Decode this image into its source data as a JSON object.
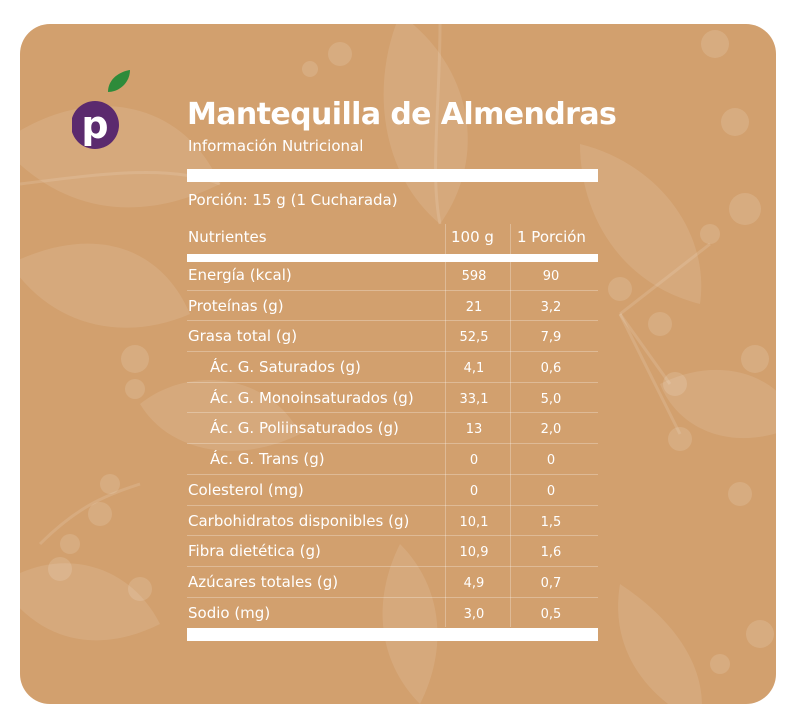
{
  "brand": {
    "logo_letter": "p",
    "logo_color": "#5b2a6e",
    "leaf_color": "#2e8b3a"
  },
  "colors": {
    "card_background": "#d2a06e",
    "text": "#ffffff"
  },
  "title": "Mantequilla de Almendras",
  "subtitle": "Información Nutricional",
  "portion": "Porción: 15 g (1 Cucharada)",
  "table": {
    "headers": [
      "Nutrientes",
      "100 g",
      "1 Porción"
    ],
    "rows": [
      {
        "name": "Energía (kcal)",
        "per100": "598",
        "perPortion": "90",
        "indent": false
      },
      {
        "name": "Proteínas (g)",
        "per100": "21",
        "perPortion": "3,2",
        "indent": false
      },
      {
        "name": "Grasa total (g)",
        "per100": "52,5",
        "perPortion": "7,9",
        "indent": false
      },
      {
        "name": "Ác. G. Saturados (g)",
        "per100": "4,1",
        "perPortion": "0,6",
        "indent": true
      },
      {
        "name": "Ác. G. Monoinsaturados (g)",
        "per100": "33,1",
        "perPortion": "5,0",
        "indent": true
      },
      {
        "name": "Ác. G. Poliinsaturados (g)",
        "per100": "13",
        "perPortion": "2,0",
        "indent": true
      },
      {
        "name": "Ác. G. Trans (g)",
        "per100": "0",
        "perPortion": "0",
        "indent": true
      },
      {
        "name": "Colesterol (mg)",
        "per100": "0",
        "perPortion": "0",
        "indent": false
      },
      {
        "name": "Carbohidratos disponibles (g)",
        "per100": "10,1",
        "perPortion": "1,5",
        "indent": false
      },
      {
        "name": "Fibra dietética (g)",
        "per100": "10,9",
        "perPortion": "1,6",
        "indent": false
      },
      {
        "name": "Azúcares totales (g)",
        "per100": "4,9",
        "perPortion": "0,7",
        "indent": false
      },
      {
        "name": "Sodio (mg)",
        "per100": "3,0",
        "perPortion": "0,5",
        "indent": false
      }
    ]
  }
}
